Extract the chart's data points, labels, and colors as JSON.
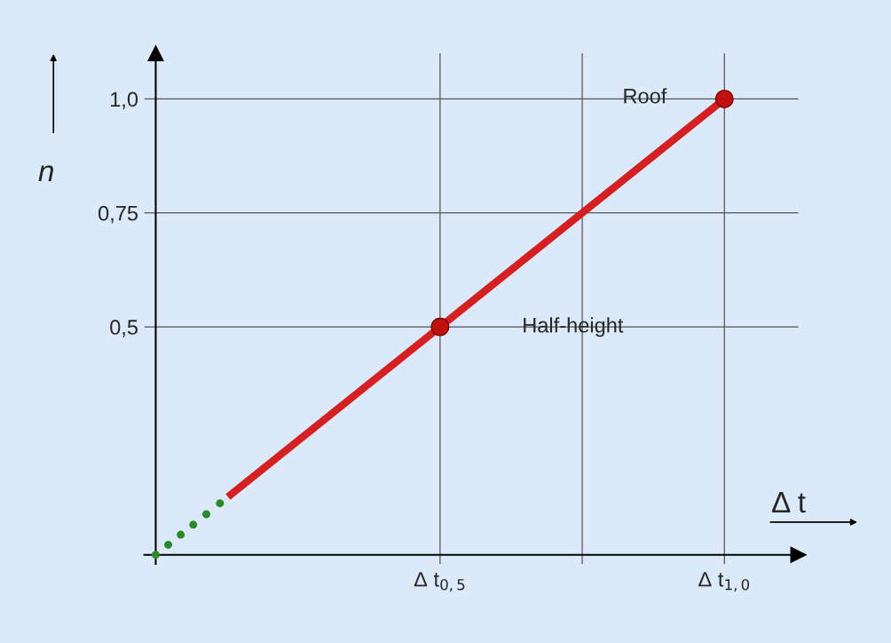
{
  "chart_data": {
    "type": "line",
    "xlabel": "Δ t",
    "ylabel": "n",
    "xlim": [
      -0.02,
      1.13
    ],
    "ylim": [
      -0.02,
      1.1
    ],
    "xticks": [
      {
        "value": 0.5,
        "label": "Δ t$_{0,5}$"
      },
      {
        "value": 0.75,
        "label": null
      },
      {
        "value": 1.0,
        "label": "Δ t$_{1,0}$"
      }
    ],
    "yticks": [
      {
        "value": 0.5,
        "label": "0,5"
      },
      {
        "value": 0.75,
        "label": "0,75"
      },
      {
        "value": 1.0,
        "label": "1,0"
      }
    ],
    "grid": true,
    "series": [
      {
        "type": "scatter",
        "color": "#2a8a2a",
        "marker": "circle",
        "x": [
          0,
          0.022,
          0.044,
          0.066,
          0.089,
          0.113
        ],
        "values": [
          0,
          0.022,
          0.044,
          0.066,
          0.089,
          0.113
        ]
      },
      {
        "color": "#d42020",
        "marker": "none",
        "line_style": "solid",
        "x": [
          0.127,
          1.0
        ],
        "values": [
          0.127,
          1.0
        ]
      },
      {
        "type": "scatter",
        "color": "#c01010",
        "marker": "circle",
        "x": [
          0.5,
          1.0
        ],
        "values": [
          0.5,
          1.0
        ]
      }
    ],
    "annotations": [
      "Roof",
      "Half-height"
    ]
  }
}
